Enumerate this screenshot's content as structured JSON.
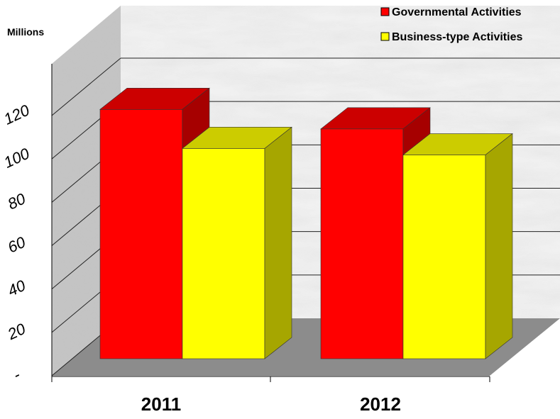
{
  "chart_data": {
    "type": "bar",
    "title": "",
    "ylabel": "Millions",
    "xlabel": "",
    "categories": [
      "2011",
      "2012"
    ],
    "series": [
      {
        "name": "Governmental Activities",
        "values": [
          115,
          106
        ],
        "color": "#ff0000"
      },
      {
        "name": "Business-type Activities",
        "values": [
          97,
          94
        ],
        "color": "#ffff00"
      }
    ],
    "ylim": [
      0,
      120
    ],
    "yticks": [
      "-",
      "20",
      "40",
      "60",
      "80",
      "100",
      "120"
    ],
    "grid": true,
    "legend": "top-right",
    "style": "3d-clustered-column",
    "walls": "marble-texture",
    "floor_color": "#8c8c8c"
  }
}
